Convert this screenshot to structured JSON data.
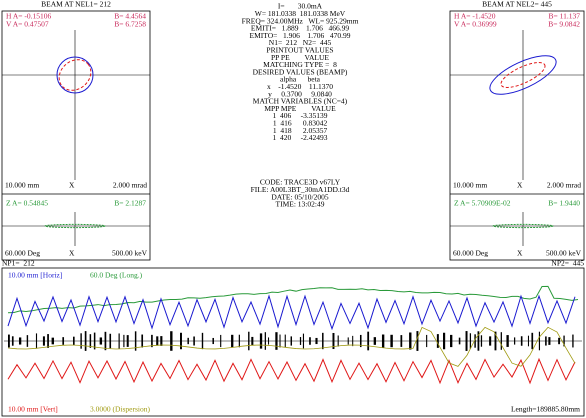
{
  "left_panel": {
    "title": "BEAM AT NEL1= 212",
    "h_a": "H A= -0.15106",
    "h_b": "B= 4.4564",
    "v_a": "V A= 0.47507",
    "v_b": "B= 6.7258",
    "x_scale": "10.000 mm",
    "x_axis": "X",
    "x_angle": "2.000 mrad",
    "z_a": "Z A= 0.54845",
    "z_b": "B= 2.1287",
    "z_phase": "60.000 Deg",
    "z_axis": "X",
    "z_energy": "500.00 keV"
  },
  "right_panel": {
    "title": "BEAM AT NEL2= 445",
    "h_a": "H A= -1.4520",
    "h_b": "B= 11.137",
    "v_a": "V A= 0.36999",
    "v_b": "B= 9.0842",
    "x_scale": "10.000 mm",
    "x_axis": "X",
    "x_angle": "2.000 mrad",
    "z_a": "Z A= 5.70909E-02",
    "z_b": "B= 1.9440",
    "z_phase": "60.000 Deg",
    "z_axis": "X",
    "z_energy": "500.00 keV"
  },
  "center_lines": [
    "I=       30.0mA",
    "W= 181.0338  181.0338 MeV",
    "FREQ= 324.00MHz   WL= 925.29mm",
    "EMITI=   1.889    1.706   466.99",
    "EMITO=   1.906    1.706   470.99",
    "N1=  212   N2=  445",
    "PRINTOUT VALUES",
    "PP PE        VALUE",
    "MATCHING TYPE =  8",
    "DESIRED VALUES (BEAMP)",
    "alpha      beta",
    "x    -1.4520    11.1370",
    "y     0.3700     9.0840",
    "MATCH VARIABLES (NC=4)",
    "MPP MPE        VALUE",
    "1  406     -3.35139",
    "1  416      0.83042",
    "1  418      2.05357",
    "1  420     -2.42493"
  ],
  "info_lines": [
    "CODE: TRACE3D v67LY",
    "FILE: A00L3BT_30mA1DD.t3d",
    "DATE: 05/10/2005",
    "TIME: 13:02:49"
  ],
  "bottom_plot": {
    "np1": "NP1=  212",
    "np2": "NP2=  445",
    "horiz_label": "10.00 mm [Horiz]",
    "long_label": "60.0 Deg (Long.)",
    "vert_label": "10.00 mm [Vert]",
    "disp_label": "3.0000 (Dispersion)",
    "length": "Length=189885.80mm"
  }
}
